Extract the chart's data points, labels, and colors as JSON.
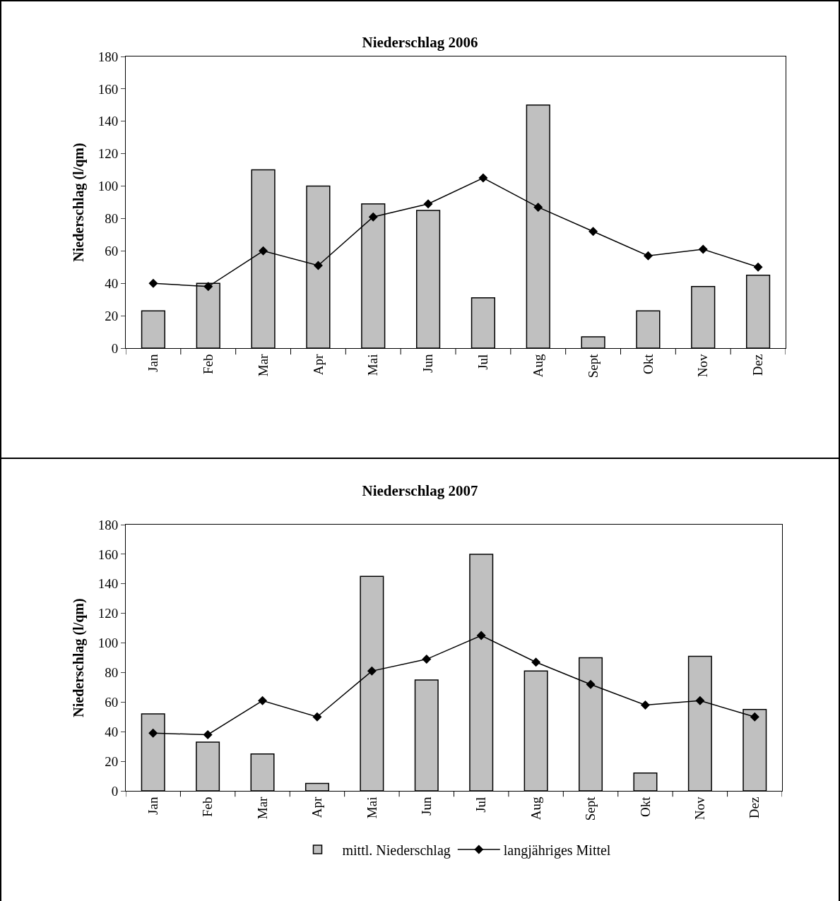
{
  "chart_data": [
    {
      "type": "bar",
      "title": "Niederschlag 2006",
      "ylabel": "Niederschlag (l/qm)",
      "categories": [
        "Jan",
        "Feb",
        "Mar",
        "Apr",
        "Mai",
        "Jun",
        "Jul",
        "Aug",
        "Sept",
        "Okt",
        "Nov",
        "Dez"
      ],
      "ylim": [
        0,
        180
      ],
      "yticks": [
        0,
        20,
        40,
        60,
        80,
        100,
        120,
        140,
        160,
        180
      ],
      "grid": false,
      "legend": false,
      "marker": "diamond",
      "series": [
        {
          "color": "#c0c0c0",
          "values": [
            23,
            40,
            110,
            100,
            89,
            85,
            31,
            150,
            7,
            23,
            38,
            45
          ]
        },
        {
          "type": "line",
          "color": "#000000",
          "values": [
            40,
            38,
            60,
            51,
            81,
            89,
            105,
            87,
            72,
            57,
            61,
            50
          ]
        }
      ]
    },
    {
      "type": "bar",
      "title": "Niederschlag 2007",
      "ylabel": "Niederschlag (l/qm)",
      "categories": [
        "Jan",
        "Feb",
        "Mar",
        "Apr",
        "Mai",
        "Jun",
        "Jul",
        "Aug",
        "Sept",
        "Okt",
        "Nov",
        "Dez"
      ],
      "ylim": [
        0,
        180
      ],
      "yticks": [
        0,
        20,
        40,
        60,
        80,
        100,
        120,
        140,
        160,
        180
      ],
      "grid": false,
      "legend": "bottom",
      "marker": "diamond",
      "series": [
        {
          "name": "mittl. Niederschlag",
          "color": "#c0c0c0",
          "values": [
            52,
            33,
            25,
            5,
            145,
            75,
            160,
            81,
            90,
            12,
            91,
            55
          ]
        },
        {
          "type": "line",
          "name": "langjähriges Mittel",
          "color": "#000000",
          "values": [
            39,
            38,
            61,
            50,
            81,
            89,
            105,
            87,
            72,
            58,
            61,
            50
          ]
        }
      ]
    }
  ]
}
